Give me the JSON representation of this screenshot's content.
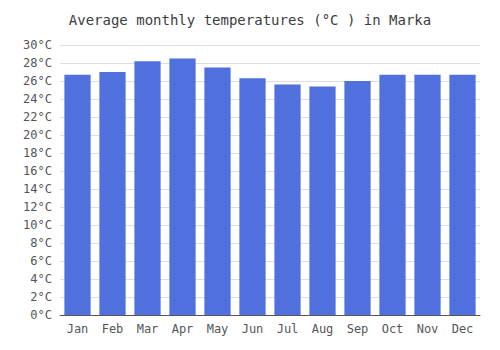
{
  "chart_data": {
    "type": "bar",
    "title": "Average monthly temperatures (°C ) in Marka",
    "categories": [
      "Jan",
      "Feb",
      "Mar",
      "Apr",
      "May",
      "Jun",
      "Jul",
      "Aug",
      "Sep",
      "Oct",
      "Nov",
      "Dec"
    ],
    "values": [
      26.7,
      27.0,
      28.2,
      28.5,
      27.5,
      26.3,
      25.6,
      25.4,
      26.0,
      26.7,
      26.7,
      26.7
    ],
    "ylim": [
      0,
      30
    ],
    "yticks": [
      {
        "value": 0,
        "label": "0°C"
      },
      {
        "value": 2,
        "label": "2°C"
      },
      {
        "value": 4,
        "label": "4°C"
      },
      {
        "value": 6,
        "label": "6°C"
      },
      {
        "value": 8,
        "label": "8°C"
      },
      {
        "value": 10,
        "label": "10°C"
      },
      {
        "value": 12,
        "label": "12°C"
      },
      {
        "value": 14,
        "label": "14°C"
      },
      {
        "value": 16,
        "label": "16°C"
      },
      {
        "value": 18,
        "label": "18°C"
      },
      {
        "value": 20,
        "label": "20°C"
      },
      {
        "value": 22,
        "label": "22°C"
      },
      {
        "value": 24,
        "label": "24°C"
      },
      {
        "value": 26,
        "label": "26°C"
      },
      {
        "value": 28,
        "label": "28°C"
      },
      {
        "value": 30,
        "label": "30°C"
      }
    ],
    "grid": true
  }
}
